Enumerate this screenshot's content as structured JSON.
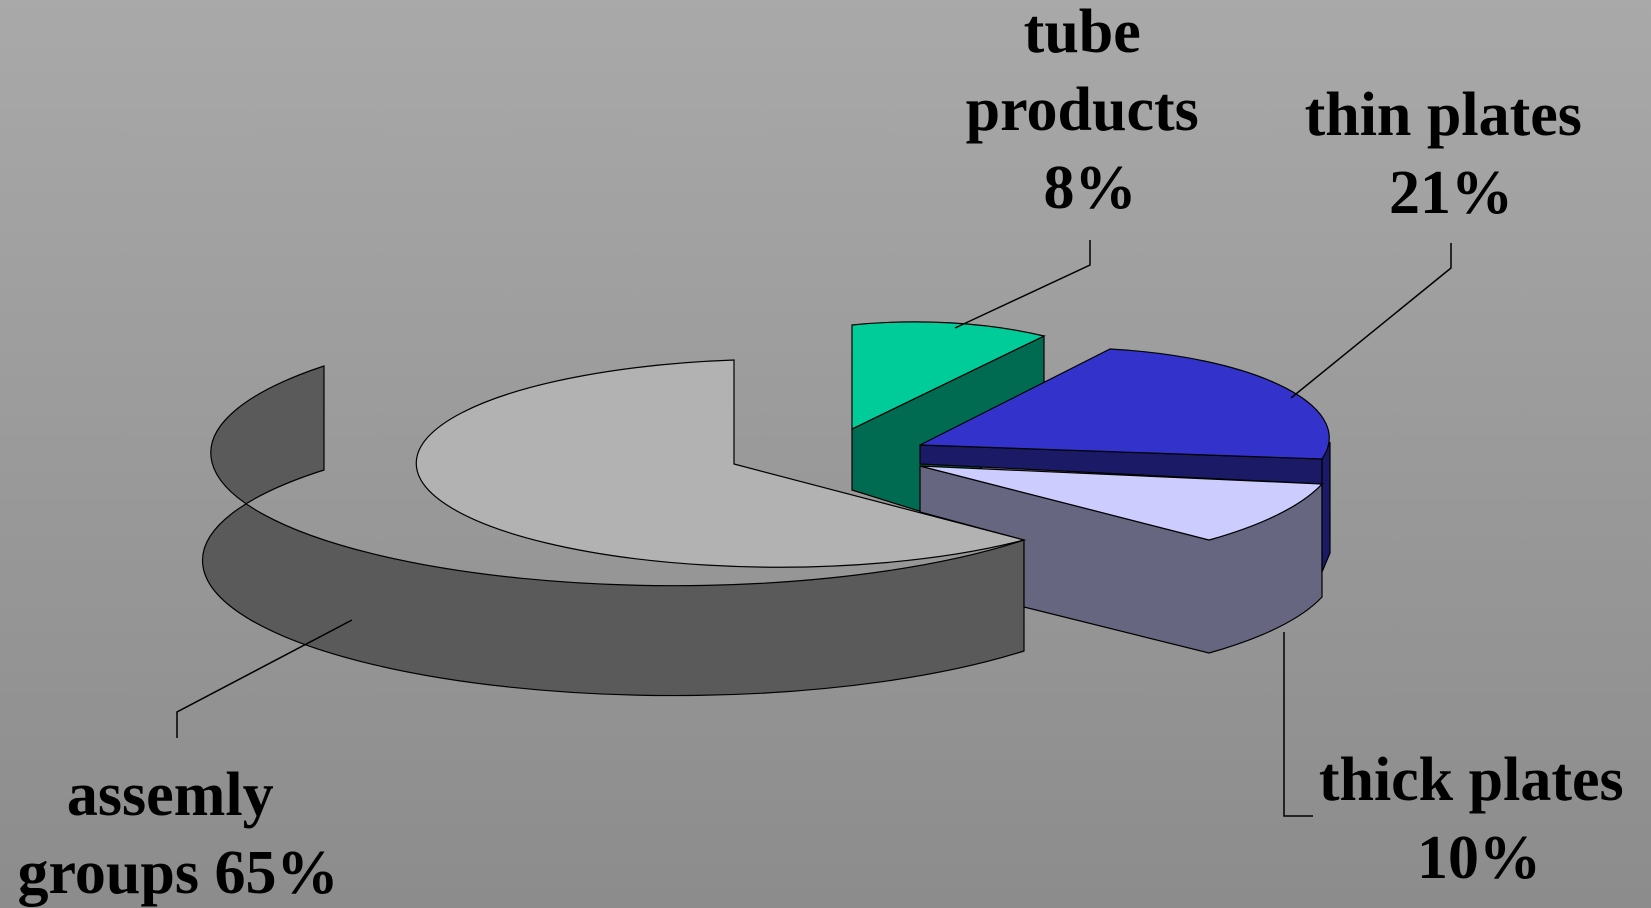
{
  "chart_data": {
    "type": "pie",
    "title": "",
    "slices": [
      {
        "name": "tube products",
        "label_lines": [
          "tube",
          "products",
          "8%"
        ],
        "value": 8,
        "color": "#00cc99",
        "side_color": "#006b50",
        "exploded": true
      },
      {
        "name": "thin plates",
        "label_lines": [
          "thin plates",
          "21%"
        ],
        "value": 21,
        "color": "#3333cc",
        "side_color": "#1a1a66",
        "exploded": true
      },
      {
        "name": "thick plates",
        "label_lines": [
          "thick plates",
          "10%"
        ],
        "value": 10,
        "color": "#ccccff",
        "side_color": "#666680",
        "exploded": true
      },
      {
        "name": "assemly groups",
        "label_lines": [
          "assemly",
          "groups 65%"
        ],
        "value": 65,
        "color": "#b2b2b2",
        "side_color": "#5a5a5a",
        "exploded": false
      }
    ],
    "legend": "none",
    "style": "3d-exploded"
  }
}
